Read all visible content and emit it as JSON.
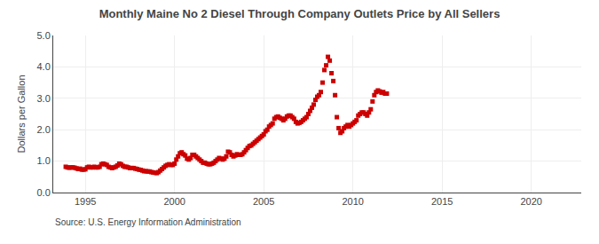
{
  "chart_data": {
    "type": "scatter",
    "title": "Monthly Maine No 2 Diesel Through Company Outlets Price by All Sellers",
    "ylabel": "Dollars per Gallon",
    "annotations": [
      "Source: U.S. Energy Information Administration"
    ],
    "color": "#cc0000",
    "marker": "square",
    "grid": true,
    "xlim": [
      1993.2,
      2022.8
    ],
    "xticks": [
      1995,
      2000,
      2005,
      2010,
      2015,
      2020
    ],
    "ylim": [
      0.0,
      5.0
    ],
    "yticks": [
      {
        "value": 0.0,
        "label": "0.0"
      },
      {
        "value": 1.0,
        "label": "1.0"
      },
      {
        "value": 2.0,
        "label": "2.0"
      },
      {
        "value": 3.0,
        "label": "3.0"
      },
      {
        "value": 4.0,
        "label": "4.0"
      },
      {
        "value": 5.0,
        "label": "5.0"
      }
    ],
    "x": [
      1993.9,
      1994.0,
      1994.1,
      1994.2,
      1994.3,
      1994.4,
      1994.5,
      1994.6,
      1994.7,
      1994.8,
      1994.9,
      1995.0,
      1995.1,
      1995.2,
      1995.3,
      1995.4,
      1995.5,
      1995.6,
      1995.7,
      1995.8,
      1995.9,
      1996.0,
      1996.1,
      1996.2,
      1996.3,
      1996.4,
      1996.5,
      1996.6,
      1996.7,
      1996.8,
      1996.9,
      1997.0,
      1997.1,
      1997.2,
      1997.3,
      1997.4,
      1997.5,
      1997.6,
      1997.7,
      1997.8,
      1997.9,
      1998.0,
      1998.1,
      1998.2,
      1998.3,
      1998.4,
      1998.5,
      1998.6,
      1998.7,
      1998.8,
      1998.9,
      1999.0,
      1999.1,
      1999.2,
      1999.3,
      1999.4,
      1999.5,
      1999.6,
      1999.7,
      1999.8,
      1999.9,
      2000.0,
      2000.1,
      2000.2,
      2000.3,
      2000.4,
      2000.5,
      2000.6,
      2000.7,
      2000.8,
      2000.9,
      2001.0,
      2001.1,
      2001.2,
      2001.3,
      2001.4,
      2001.5,
      2001.6,
      2001.7,
      2001.8,
      2001.9,
      2002.0,
      2002.1,
      2002.2,
      2002.3,
      2002.4,
      2002.5,
      2002.6,
      2002.7,
      2002.8,
      2002.9,
      2003.0,
      2003.1,
      2003.2,
      2003.3,
      2003.4,
      2003.5,
      2003.6,
      2003.7,
      2003.8,
      2003.9,
      2004.0,
      2004.1,
      2004.2,
      2004.3,
      2004.4,
      2004.5,
      2004.6,
      2004.7,
      2004.8,
      2004.9,
      2005.0,
      2005.1,
      2005.2,
      2005.3,
      2005.4,
      2005.5,
      2005.6,
      2005.7,
      2005.8,
      2005.9,
      2006.0,
      2006.1,
      2006.2,
      2006.3,
      2006.4,
      2006.5,
      2006.6,
      2006.7,
      2006.8,
      2006.9,
      2007.0,
      2007.1,
      2007.2,
      2007.3,
      2007.4,
      2007.5,
      2007.6,
      2007.7,
      2007.8,
      2007.9,
      2008.0,
      2008.1,
      2008.2,
      2008.3,
      2008.4,
      2008.5,
      2008.6,
      2008.7,
      2008.8,
      2008.9,
      2009.0,
      2009.1,
      2009.2,
      2009.3,
      2009.4,
      2009.5,
      2009.6,
      2009.7,
      2009.8,
      2009.9,
      2010.0,
      2010.1,
      2010.2,
      2010.3,
      2010.4,
      2010.5,
      2010.6,
      2010.7,
      2010.8,
      2010.9,
      2011.0,
      2011.1,
      2011.2,
      2011.3,
      2011.4,
      2011.5,
      2011.6,
      2011.7,
      2011.8,
      2011.9
    ],
    "values": [
      0.82,
      0.8,
      0.79,
      0.8,
      0.8,
      0.79,
      0.77,
      0.75,
      0.76,
      0.73,
      0.73,
      0.74,
      0.8,
      0.82,
      0.8,
      0.8,
      0.82,
      0.8,
      0.8,
      0.82,
      0.9,
      0.92,
      0.9,
      0.88,
      0.82,
      0.8,
      0.78,
      0.8,
      0.82,
      0.86,
      0.92,
      0.9,
      0.85,
      0.82,
      0.82,
      0.8,
      0.78,
      0.78,
      0.78,
      0.76,
      0.75,
      0.73,
      0.72,
      0.7,
      0.68,
      0.68,
      0.67,
      0.67,
      0.65,
      0.64,
      0.63,
      0.62,
      0.65,
      0.7,
      0.75,
      0.8,
      0.85,
      0.88,
      0.9,
      0.88,
      0.88,
      0.92,
      1.05,
      1.15,
      1.25,
      1.28,
      1.22,
      1.18,
      1.08,
      1.05,
      1.1,
      1.2,
      1.2,
      1.15,
      1.1,
      1.05,
      1.0,
      0.95,
      0.95,
      0.92,
      0.9,
      0.9,
      0.92,
      0.95,
      1.0,
      1.05,
      1.1,
      1.08,
      1.05,
      1.08,
      1.15,
      1.3,
      1.28,
      1.2,
      1.15,
      1.18,
      1.22,
      1.2,
      1.2,
      1.22,
      1.28,
      1.35,
      1.42,
      1.48,
      1.5,
      1.55,
      1.6,
      1.65,
      1.7,
      1.75,
      1.8,
      1.85,
      1.95,
      2.0,
      2.1,
      2.15,
      2.2,
      2.35,
      2.4,
      2.42,
      2.38,
      2.35,
      2.3,
      2.35,
      2.42,
      2.45,
      2.45,
      2.4,
      2.35,
      2.25,
      2.2,
      2.22,
      2.25,
      2.3,
      2.35,
      2.4,
      2.5,
      2.6,
      2.7,
      2.8,
      2.95,
      3.05,
      3.1,
      3.2,
      3.5,
      3.9,
      4.05,
      4.32,
      4.2,
      3.8,
      3.55,
      3.1,
      2.4,
      2.05,
      1.9,
      1.95,
      2.05,
      2.1,
      2.15,
      2.1,
      2.15,
      2.2,
      2.25,
      2.3,
      2.45,
      2.5,
      2.55,
      2.55,
      2.5,
      2.45,
      2.55,
      2.65,
      2.9,
      3.1,
      3.2,
      3.25,
      3.22,
      3.18,
      3.2,
      3.15,
      3.15
    ]
  }
}
